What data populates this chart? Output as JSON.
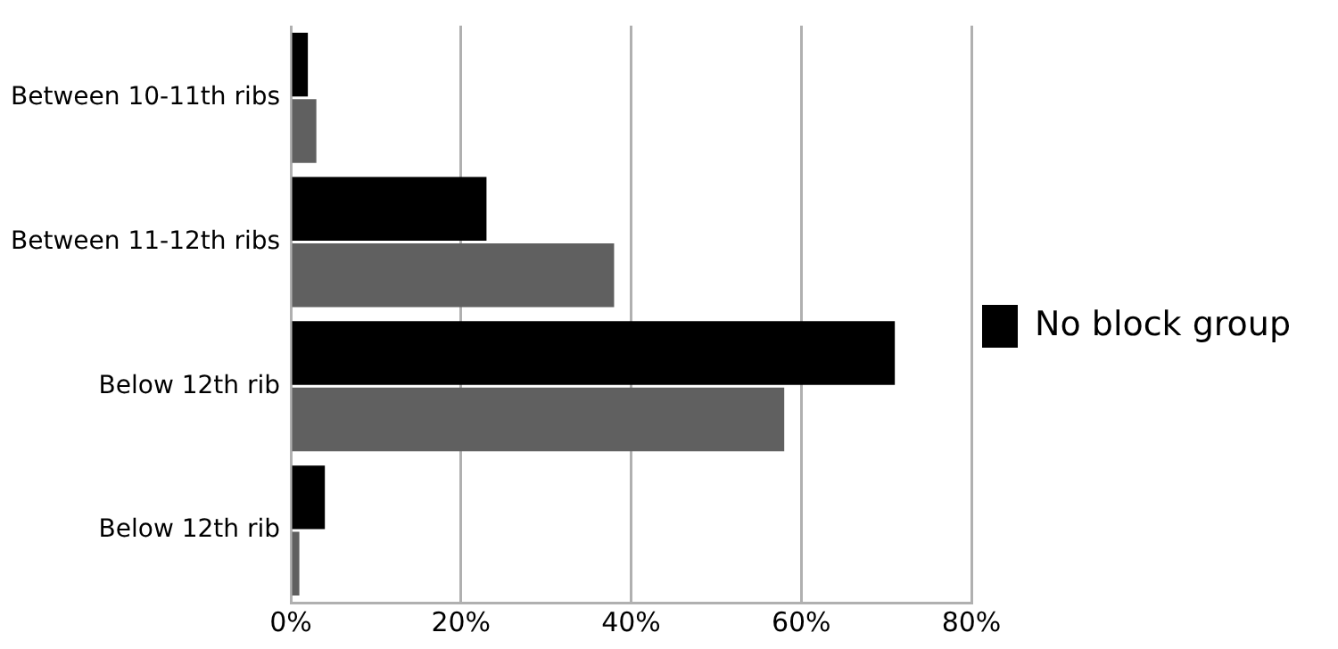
{
  "chart_data": {
    "type": "bar",
    "orientation": "horizontal",
    "categories": [
      "Between 10-11th ribs",
      "Between 11-12th ribs",
      "Below 12th rib",
      "Below 12th rib"
    ],
    "series": [
      {
        "name": "No block group",
        "color": "#000000",
        "values": [
          2,
          23,
          71,
          4
        ]
      },
      {
        "color": "#606060",
        "values": [
          3,
          38,
          58,
          1
        ]
      }
    ],
    "xlim": [
      0,
      80
    ],
    "xticks": [
      {
        "value": 0,
        "label": "0%"
      },
      {
        "value": 20,
        "label": "20%"
      },
      {
        "value": 40,
        "label": "40%"
      },
      {
        "value": 60,
        "label": "60%"
      },
      {
        "value": 80,
        "label": "80%"
      }
    ],
    "grid": "x",
    "legend": "right"
  }
}
